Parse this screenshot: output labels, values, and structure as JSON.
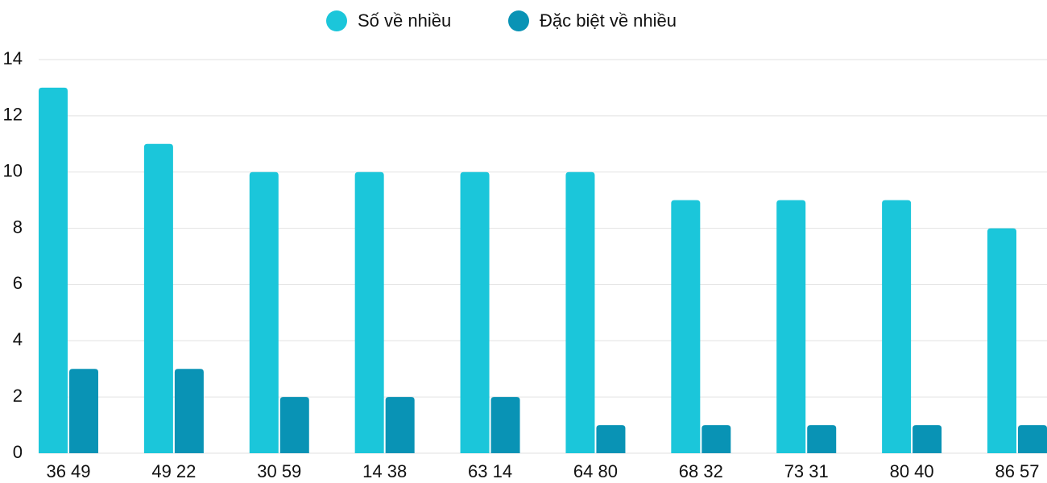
{
  "chart_data": {
    "type": "bar",
    "categories": [
      "36 49",
      "49 22",
      "30 59",
      "14 38",
      "63 14",
      "64 80",
      "68 32",
      "73 31",
      "80 40",
      "86 57"
    ],
    "series": [
      {
        "name": "Số về nhiều",
        "color": "#1bc6da",
        "values": [
          13,
          11,
          10,
          10,
          10,
          10,
          9,
          9,
          9,
          8
        ]
      },
      {
        "name": "Đặc biệt về nhiều",
        "color": "#0993b5",
        "values": [
          3,
          3,
          2,
          2,
          2,
          1,
          1,
          1,
          1,
          1
        ]
      }
    ],
    "ylim": [
      0,
      14
    ],
    "yticks": [
      0,
      2,
      4,
      6,
      8,
      10,
      12,
      14
    ],
    "grid": true,
    "legend": "top"
  }
}
